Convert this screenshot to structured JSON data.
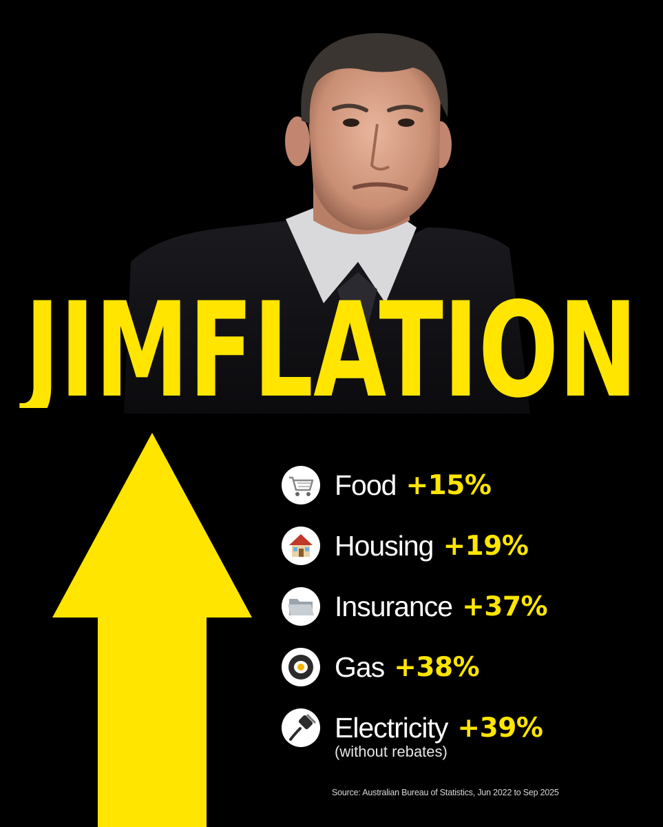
{
  "headline": "JIMFLATION",
  "colors": {
    "background": "#000000",
    "accent": "#FFE500",
    "text": "#FFFFFF"
  },
  "stats": [
    {
      "icon": "shopping-cart-icon",
      "label": "Food",
      "value": "+15%"
    },
    {
      "icon": "house-icon",
      "label": "Housing",
      "value": "+19%"
    },
    {
      "icon": "folder-icon",
      "label": "Insurance",
      "value": "+37%"
    },
    {
      "icon": "frying-pan-icon",
      "label": "Gas",
      "value": "+38%"
    },
    {
      "icon": "electric-plug-icon",
      "label": "Electricity",
      "value": "+39%",
      "note": "(without rebates)"
    }
  ],
  "source": "Source: Australian Bureau of Statistics, Jun 2022 to Sep 2025"
}
